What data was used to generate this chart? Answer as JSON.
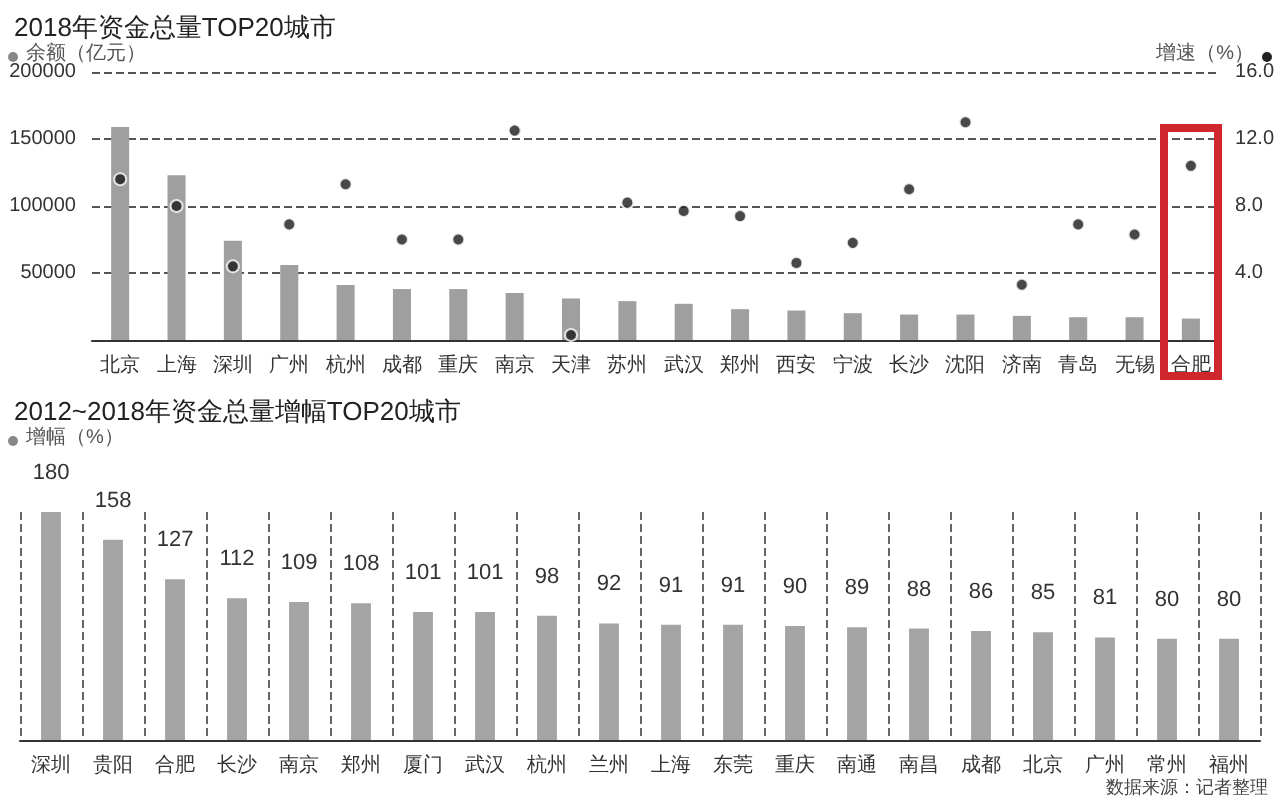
{
  "chart_data": [
    {
      "type": "bar",
      "title": "2018年资金总量TOP20城市",
      "ylabel": "余额（亿元）",
      "y2label": "增速（%）",
      "categories": [
        "北京",
        "上海",
        "深圳",
        "广州",
        "杭州",
        "成都",
        "重庆",
        "南京",
        "天津",
        "苏州",
        "武汉",
        "郑州",
        "西安",
        "宁波",
        "长沙",
        "沈阳",
        "济南",
        "青岛",
        "无锡",
        "合肥"
      ],
      "series": [
        {
          "color": "#a09fa0",
          "values": [
            159000,
            123000,
            74000,
            56000,
            41000,
            38000,
            38000,
            35000,
            31000,
            29000,
            27000,
            23000,
            22000,
            20000,
            19000,
            19000,
            18000,
            17000,
            17000,
            16000
          ]
        },
        {
          "type": "scatter",
          "axis": "y2",
          "color": "#1a1a1a",
          "marker": "circle",
          "x": [
            "北京",
            "上海",
            "深圳",
            "广州",
            "杭州",
            "成都",
            "重庆",
            "南京",
            "天津",
            "苏州",
            "武汉",
            "郑州",
            "西安",
            "宁波",
            "长沙",
            "沈阳",
            "济南",
            "青岛",
            "无锡",
            "合肥"
          ],
          "values": [
            9.6,
            8.0,
            4.4,
            6.9,
            9.3,
            6.0,
            6.0,
            12.5,
            0.3,
            8.2,
            7.7,
            7.4,
            4.6,
            5.8,
            9.0,
            13.0,
            3.3,
            6.9,
            6.3,
            10.4
          ]
        }
      ],
      "ylim": [
        0,
        200000
      ],
      "yticks": [
        50000,
        100000,
        150000,
        200000
      ],
      "y2lim": [
        0,
        16
      ],
      "y2ticks": [
        {
          "value": 4,
          "label": "4.0"
        },
        {
          "value": 8,
          "label": "8.0"
        },
        {
          "value": 12,
          "label": "12.0"
        },
        {
          "value": 16,
          "label": "16.0"
        }
      ],
      "grid": "y"
    },
    {
      "type": "bar",
      "title": "2012~2018年资金总量增幅TOP20城市",
      "ylabel": "增幅（%）",
      "categories": [
        "深圳",
        "贵阳",
        "合肥",
        "长沙",
        "南京",
        "郑州",
        "厦门",
        "武汉",
        "杭州",
        "兰州",
        "上海",
        "东莞",
        "重庆",
        "南通",
        "南昌",
        "成都",
        "北京",
        "广州",
        "常州",
        "福州"
      ],
      "values": [
        180,
        158,
        127,
        112,
        109,
        108,
        101,
        101,
        98,
        92,
        91,
        91,
        90,
        89,
        88,
        86,
        85,
        81,
        80,
        80
      ],
      "color": "#a5a4a5",
      "data_labels": true,
      "grid": "x",
      "annotations": [
        "数据来源：记者整理"
      ]
    }
  ]
}
